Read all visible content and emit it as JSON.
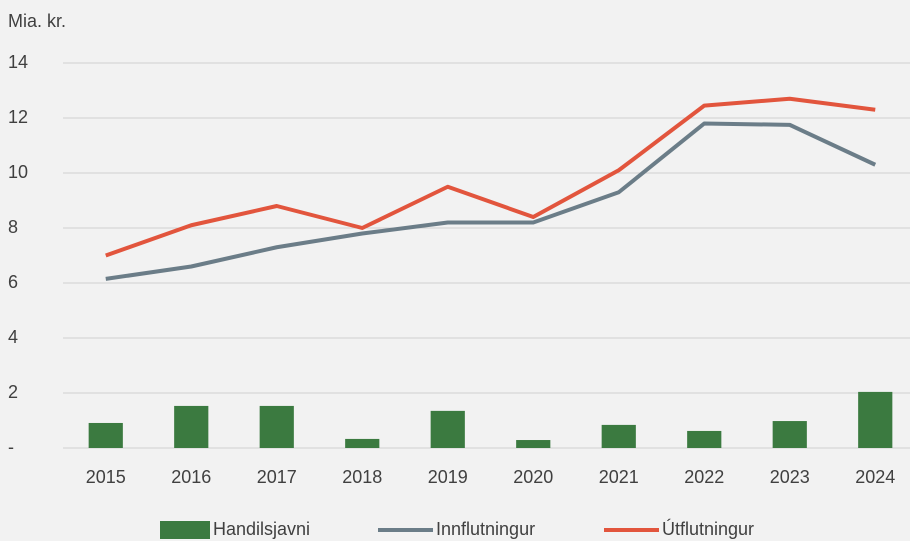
{
  "chart_data": {
    "type": "bar",
    "y_label": "Mia. kr.",
    "categories": [
      "2015",
      "2016",
      "2017",
      "2018",
      "2019",
      "2020",
      "2021",
      "2022",
      "2023",
      "2024"
    ],
    "series": [
      {
        "name": "Handilsjavni",
        "type": "bar",
        "color": "#3b7a40",
        "values": [
          0.91,
          1.53,
          1.53,
          0.33,
          1.35,
          0.29,
          0.84,
          0.62,
          0.98,
          2.04
        ]
      },
      {
        "name": "Innflutningur",
        "type": "line",
        "color": "#6b7d88",
        "values": [
          6.15,
          6.6,
          7.3,
          7.8,
          8.2,
          8.2,
          9.3,
          11.8,
          11.75,
          10.3
        ]
      },
      {
        "name": "Útflutningur",
        "type": "line",
        "color": "#e2553d",
        "values": [
          7.0,
          8.1,
          8.8,
          8.0,
          9.5,
          8.4,
          10.1,
          12.45,
          12.7,
          12.3
        ]
      }
    ],
    "ylim": [
      0,
      14
    ],
    "yticks": [
      {
        "value": 0,
        "label": "-"
      },
      2,
      4,
      6,
      8,
      10,
      12,
      14
    ],
    "grid": true,
    "legend": "bottom"
  }
}
